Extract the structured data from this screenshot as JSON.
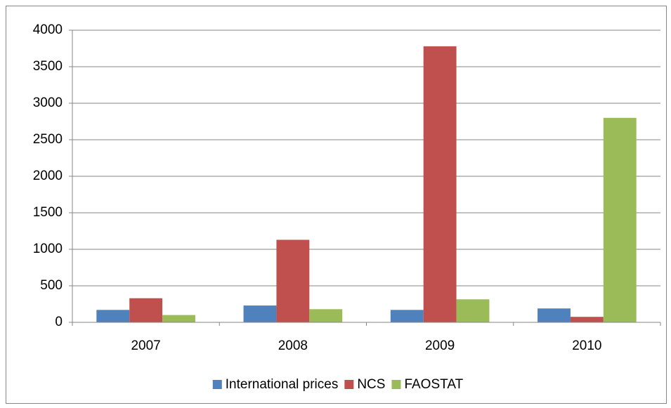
{
  "chart_data": {
    "type": "bar",
    "categories": [
      "2007",
      "2008",
      "2009",
      "2010"
    ],
    "series": [
      {
        "name": "International prices",
        "color": "#4f81bd",
        "values": [
          170,
          230,
          170,
          190
        ]
      },
      {
        "name": "NCS",
        "color": "#c0504d",
        "values": [
          330,
          1130,
          3780,
          75
        ]
      },
      {
        "name": "FAOSTAT",
        "color": "#9bbb59",
        "values": [
          100,
          180,
          315,
          2800
        ]
      }
    ],
    "ylim": [
      0,
      4000
    ],
    "yticks": [
      0,
      500,
      1000,
      1500,
      2000,
      2500,
      3000,
      3500,
      4000
    ],
    "grid": true,
    "legend": "bottom"
  }
}
